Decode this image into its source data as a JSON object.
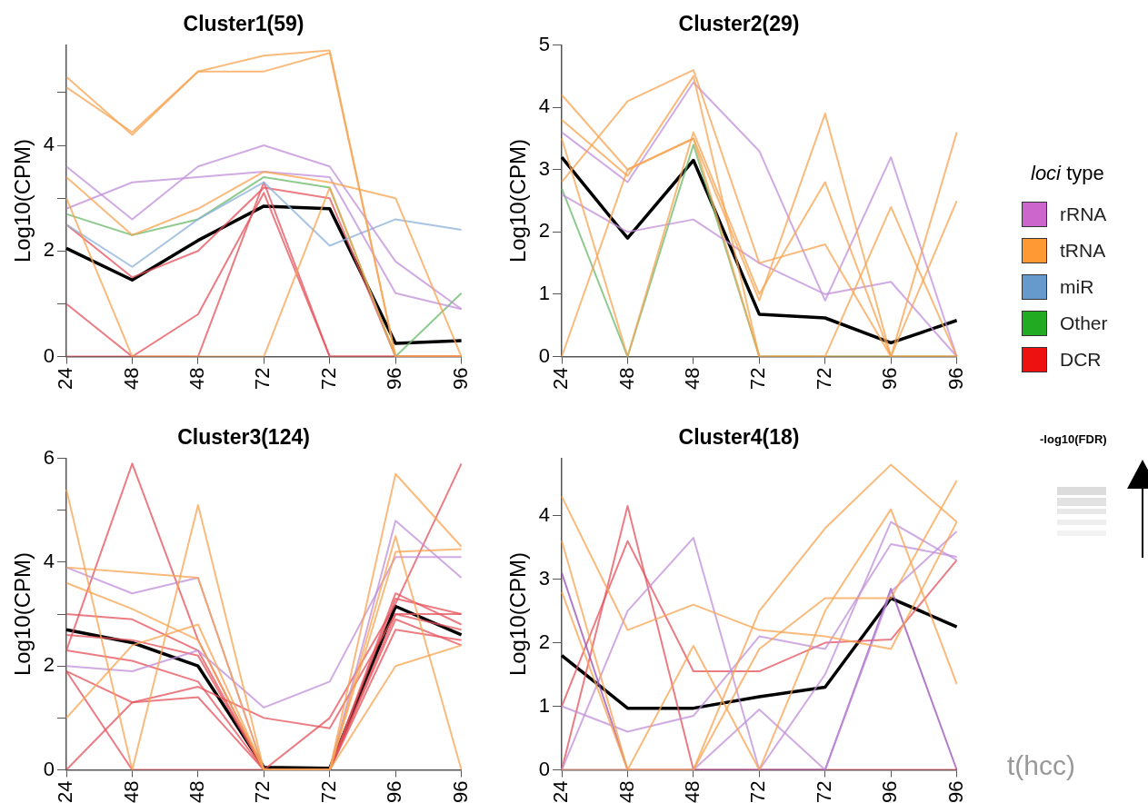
{
  "chart_data": [
    {
      "type": "line",
      "title": "Cluster1(59)",
      "ylabel": "Log10(CPM)",
      "categories": [
        "24",
        "48",
        "48",
        "72",
        "72",
        "96",
        "96"
      ],
      "ylim": [
        0,
        5.9
      ],
      "yticks": [
        0,
        {
          "value": 1,
          "label": null
        },
        2,
        {
          "value": 3,
          "label": null
        },
        4,
        {
          "value": 5,
          "label": null
        }
      ],
      "series": [
        {
          "color": "#f7a350",
          "values": [
            5.3,
            4.2,
            5.4,
            5.7,
            5.8,
            0,
            0
          ]
        },
        {
          "color": "#f7a350",
          "values": [
            5.1,
            4.25,
            5.4,
            5.4,
            5.75,
            0,
            0
          ]
        },
        {
          "color": "#f7a350",
          "values": [
            3.4,
            2.3,
            2.8,
            3.5,
            3.3,
            3.0,
            0
          ]
        },
        {
          "color": "#f7a350",
          "values": [
            3.0,
            0,
            0,
            0,
            3.2,
            0,
            0
          ]
        },
        {
          "color": "#c08ed8",
          "values": [
            3.6,
            2.6,
            3.6,
            4.0,
            3.6,
            1.8,
            0.9
          ]
        },
        {
          "color": "#c08ed8",
          "values": [
            2.8,
            3.3,
            3.4,
            3.5,
            3.4,
            1.2,
            0.9
          ]
        },
        {
          "color": "#8ab0d8",
          "values": [
            2.5,
            1.7,
            2.6,
            3.3,
            2.1,
            2.6,
            2.4
          ]
        },
        {
          "color": "#6ab86a",
          "values": [
            2.7,
            2.3,
            2.6,
            3.4,
            3.2,
            0,
            1.2
          ]
        },
        {
          "color": "#e6505a",
          "values": [
            2.5,
            1.5,
            2.0,
            3.2,
            3.0,
            0,
            0
          ]
        },
        {
          "color": "#e6505a",
          "values": [
            1.0,
            0,
            0.8,
            3.1,
            0,
            0,
            0
          ]
        },
        {
          "color": "#e6505a",
          "values": [
            0,
            0,
            0,
            3.3,
            0,
            0,
            0
          ]
        },
        {
          "color": "#000000",
          "values": [
            2.05,
            1.45,
            2.2,
            2.85,
            2.8,
            0.25,
            0.3
          ]
        }
      ]
    },
    {
      "type": "line",
      "title": "Cluster2(29)",
      "ylabel": "Log10(CPM)",
      "categories": [
        "24",
        "48",
        "48",
        "72",
        "72",
        "96",
        "96"
      ],
      "ylim": [
        0,
        5
      ],
      "yticks": [
        0,
        1,
        2,
        3,
        4,
        5
      ],
      "series": [
        {
          "color": "#f7a350",
          "values": [
            3.8,
            2.9,
            4.5,
            0,
            0,
            0,
            0
          ]
        },
        {
          "color": "#f7a350",
          "values": [
            2.8,
            4.1,
            4.6,
            1.5,
            1.8,
            0,
            0
          ]
        },
        {
          "color": "#f7a350",
          "values": [
            0,
            3.0,
            3.5,
            0,
            0,
            2.4,
            0
          ]
        },
        {
          "color": "#f7a350",
          "values": [
            4.2,
            3.0,
            3.5,
            0.9,
            3.9,
            0,
            3.6
          ]
        },
        {
          "color": "#f7a350",
          "values": [
            3.5,
            0,
            3.6,
            1.0,
            2.8,
            0,
            2.5
          ]
        },
        {
          "color": "#c08ed8",
          "values": [
            3.6,
            2.8,
            4.4,
            3.3,
            0.9,
            3.2,
            0
          ]
        },
        {
          "color": "#c08ed8",
          "values": [
            2.6,
            2.0,
            2.2,
            1.5,
            1.0,
            1.2,
            0
          ]
        },
        {
          "color": "#6ab86a",
          "values": [
            2.7,
            0,
            3.4,
            0,
            0,
            0,
            0
          ]
        },
        {
          "color": "#000000",
          "values": [
            3.2,
            1.9,
            3.15,
            0.68,
            0.62,
            0.22,
            0.58
          ]
        }
      ]
    },
    {
      "type": "line",
      "title": "Cluster3(124)",
      "ylabel": "Log10(CPM)",
      "categories": [
        "24",
        "48",
        "48",
        "72",
        "72",
        "96",
        "96"
      ],
      "ylim": [
        0,
        6
      ],
      "yticks": [
        0,
        {
          "value": 1,
          "label": null
        },
        2,
        {
          "value": 3,
          "label": null
        },
        4,
        {
          "value": 5,
          "label": null
        },
        6
      ],
      "series": [
        {
          "color": "#f7a350",
          "values": [
            3.9,
            3.8,
            3.7,
            0,
            0,
            4.2,
            4.25
          ]
        },
        {
          "color": "#f7a350",
          "values": [
            5.4,
            0,
            5.1,
            0,
            0,
            5.7,
            4.3
          ]
        },
        {
          "color": "#f7a350",
          "values": [
            1.0,
            2.4,
            2.8,
            0,
            0,
            2.0,
            2.4
          ]
        },
        {
          "color": "#f7a350",
          "values": [
            3.6,
            3.1,
            2.5,
            0,
            0,
            4.5,
            0
          ]
        },
        {
          "color": "#c08ed8",
          "values": [
            3.9,
            3.4,
            3.7,
            0,
            0,
            4.8,
            3.7
          ]
        },
        {
          "color": "#c08ed8",
          "values": [
            2.0,
            1.9,
            2.3,
            1.2,
            1.7,
            4.1,
            4.1
          ]
        },
        {
          "color": "#e6505a",
          "values": [
            3.0,
            2.9,
            2.3,
            0,
            0,
            3.4,
            2.8
          ]
        },
        {
          "color": "#e6505a",
          "values": [
            2.3,
            2.1,
            1.7,
            0,
            0,
            2.9,
            2.4
          ]
        },
        {
          "color": "#e6505a",
          "values": [
            2.6,
            2.5,
            2.2,
            0,
            0,
            3.3,
            3.0
          ]
        },
        {
          "color": "#e6505a",
          "values": [
            1.9,
            1.3,
            1.4,
            0,
            0,
            2.7,
            2.5
          ]
        },
        {
          "color": "#e6505a",
          "values": [
            2.3,
            5.9,
            2.5,
            0,
            0,
            3.0,
            2.7
          ]
        },
        {
          "color": "#e6505a",
          "values": [
            1.9,
            0,
            0,
            0,
            1.0,
            3.2,
            5.9
          ]
        },
        {
          "color": "#e6505a",
          "values": [
            0,
            1.3,
            1.6,
            1.0,
            0.8,
            3.0,
            3.0
          ]
        },
        {
          "color": "#000000",
          "values": [
            2.7,
            2.45,
            2.0,
            0.05,
            0.03,
            3.15,
            2.6
          ]
        }
      ]
    },
    {
      "type": "line",
      "title": "Cluster4(18)",
      "ylabel": "Log10(CPM)",
      "xlabel": "t(hcc)",
      "categories": [
        "24",
        "48",
        "48",
        "72",
        "72",
        "96",
        "96"
      ],
      "ylim": [
        0,
        4.9
      ],
      "yticks": [
        0,
        1,
        2,
        3,
        4
      ],
      "series": [
        {
          "color": "#f7a350",
          "values": [
            0,
            0,
            0,
            1.9,
            2.7,
            2.7,
            4.55
          ]
        },
        {
          "color": "#f7a350",
          "values": [
            3.6,
            0,
            0,
            2.5,
            3.8,
            4.8,
            3.9
          ]
        },
        {
          "color": "#f7a350",
          "values": [
            4.3,
            2.2,
            2.6,
            2.2,
            2.1,
            1.9,
            3.9
          ]
        },
        {
          "color": "#f7a350",
          "values": [
            2.8,
            0,
            1.95,
            0,
            2.5,
            4.1,
            1.35
          ]
        },
        {
          "color": "#c08ed8",
          "values": [
            1.0,
            0.6,
            0.85,
            2.1,
            1.9,
            3.55,
            3.35
          ]
        },
        {
          "color": "#c08ed8",
          "values": [
            0,
            0,
            0,
            0.95,
            0,
            2.8,
            3.75
          ]
        },
        {
          "color": "#9a50b8",
          "values": [
            3.1,
            0,
            0,
            0,
            0,
            2.85,
            0
          ]
        },
        {
          "color": "#c08ed8",
          "values": [
            0,
            2.5,
            3.65,
            0,
            1.5,
            3.9,
            3.3
          ]
        },
        {
          "color": "#e6505a",
          "values": [
            0,
            4.15,
            0,
            0,
            0,
            0,
            0
          ]
        },
        {
          "color": "#e6505a",
          "values": [
            1.0,
            3.6,
            1.55,
            1.55,
            2.0,
            2.05,
            3.3
          ]
        },
        {
          "color": "#000000",
          "values": [
            1.8,
            0.97,
            0.97,
            1.15,
            1.3,
            2.7,
            2.25
          ]
        }
      ]
    },
    {
      "type": "other",
      "legend_title": "loci type",
      "categories": [
        "rRNA",
        "tRNA",
        "miR",
        "Other",
        "DCR"
      ],
      "colors": [
        "#cc66cc",
        "#ff9933",
        "#6699cc",
        "#22aa22",
        "#ee1111"
      ],
      "annotations": [
        "-log10(FDR)"
      ]
    }
  ]
}
